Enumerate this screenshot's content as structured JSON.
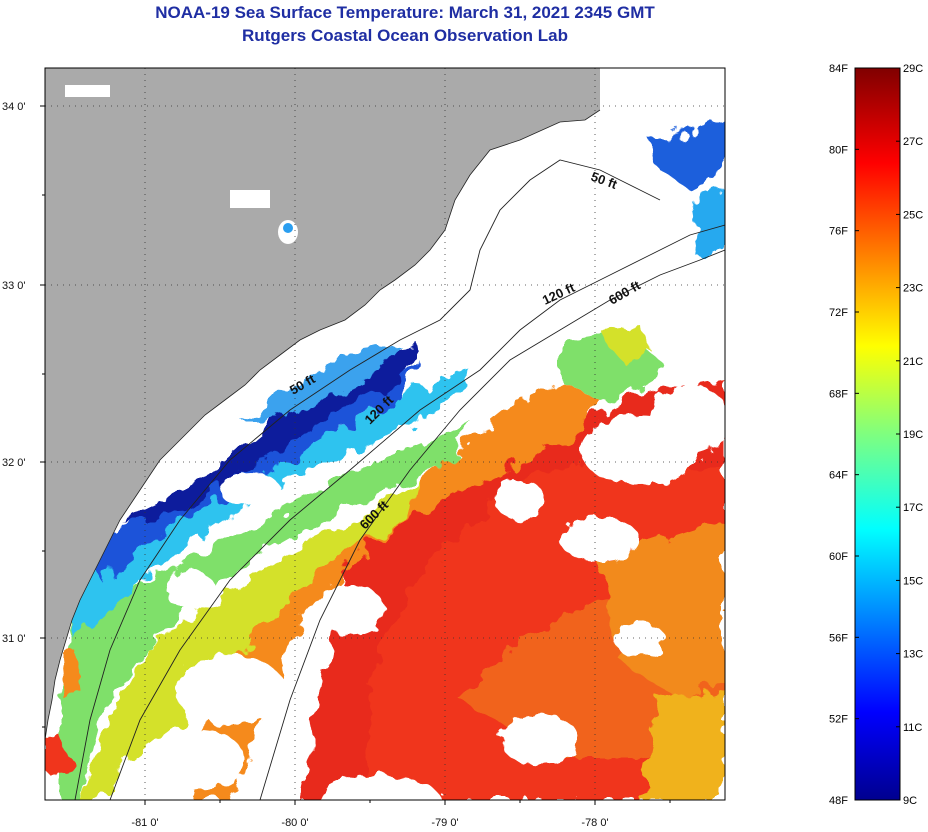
{
  "title": {
    "line1": "NOAA-19 Sea Surface Temperature:  March 31, 2021 2345 GMT",
    "line2": "Rutgers Coastal Ocean Observation Lab"
  },
  "map": {
    "lat_labels": [
      "34 0'",
      "33 0'",
      "32 0'",
      "31 0'"
    ],
    "lon_labels": [
      "-81 0'",
      "-80 0'",
      "-79 0'",
      "-78 0'"
    ],
    "contours": [
      "50 ft",
      "120 ft",
      "600 ft",
      "50 ft",
      "120 ft",
      "600 ft"
    ],
    "colors": {
      "land": "#aaaaaa",
      "cloud": "#ffffff"
    }
  },
  "colorbar": {
    "fahrenheit": [
      "84F",
      "80F",
      "76F",
      "72F",
      "68F",
      "64F",
      "60F",
      "56F",
      "52F",
      "48F"
    ],
    "celsius": [
      "29C",
      "27C",
      "25C",
      "23C",
      "21C",
      "19C",
      "17C",
      "15C",
      "13C",
      "11C",
      "9C"
    ]
  }
}
